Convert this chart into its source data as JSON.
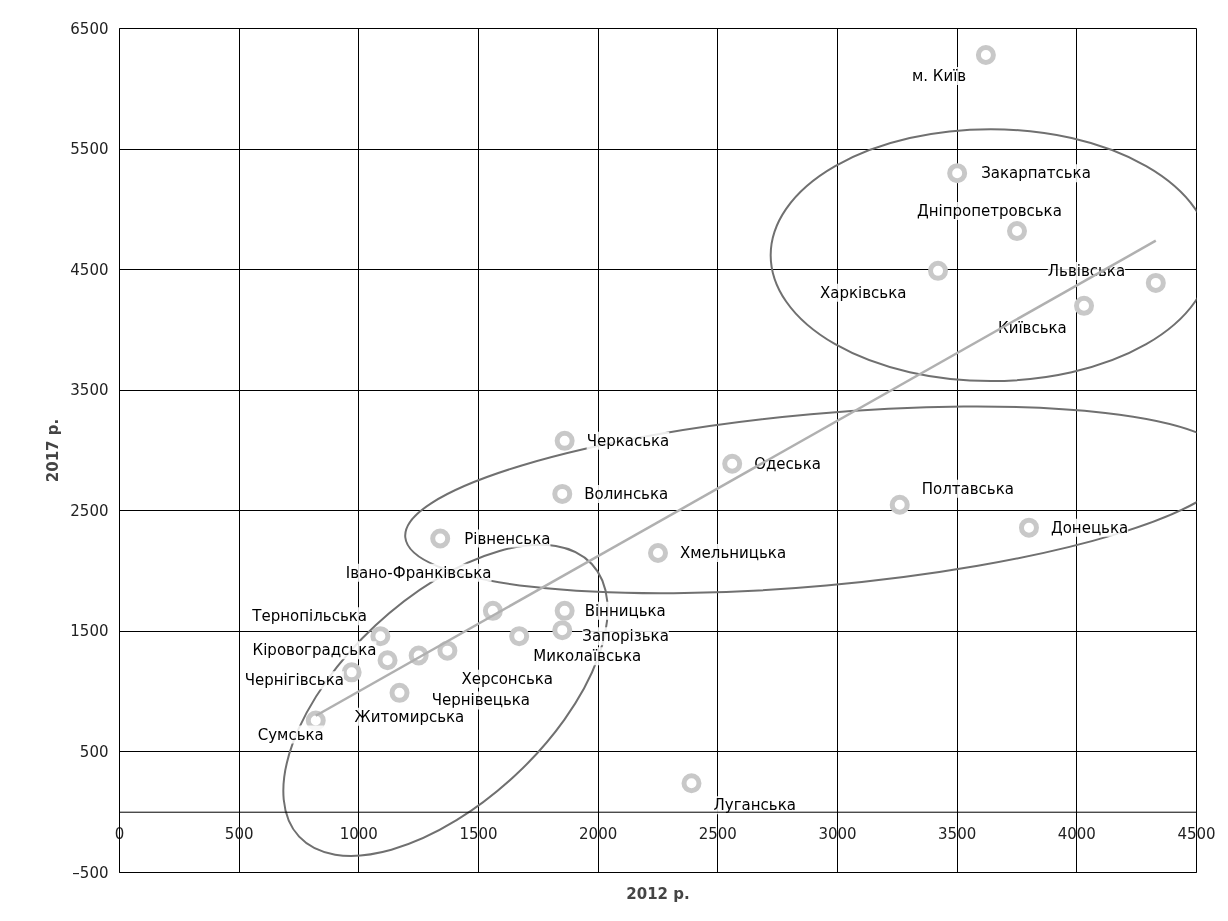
{
  "chart_data": {
    "type": "scatter",
    "xlabel": "2012 р.",
    "ylabel": "2017 р.",
    "xlim": [
      0,
      4500
    ],
    "xticks": [
      0,
      500,
      1000,
      1500,
      2000,
      2500,
      3000,
      3500,
      4000,
      4500
    ],
    "ylim": [
      -500,
      6500
    ],
    "yticks": [
      {
        "value": -500,
        "label": "–500"
      },
      500,
      1500,
      2500,
      3500,
      4500,
      5500,
      6500
    ],
    "grid": true,
    "marker": "circle",
    "series": [
      {
        "color": "#c8c8c8",
        "x": [
          3620,
          3500,
          3750,
          3420,
          4330,
          4030,
          1860,
          2560,
          3260,
          3800,
          1340,
          1850,
          2250,
          1560,
          1860,
          1850,
          1670,
          1090,
          1370,
          1250,
          1120,
          970,
          1170,
          820,
          2390
        ],
        "values": [
          6280,
          5300,
          4820,
          4490,
          4390,
          4200,
          3080,
          2890,
          2550,
          2360,
          2270,
          2640,
          2150,
          1670,
          1670,
          1510,
          1460,
          1460,
          1340,
          1300,
          1260,
          1160,
          990,
          760,
          240
        ],
        "value_labels": [
          "м. Київ",
          "Закарпатська",
          "Дніпропетровська",
          "Харківська",
          "Львівська",
          "Київська",
          "Черкаська",
          "Одеська",
          "Полтавська",
          "Донецька",
          "Рівненська",
          "Волинська",
          "Хмельницька",
          "Івано-Франківська",
          "Вінницька",
          "Запорізька",
          "Миколаївська",
          "Тернопільська",
          "Херсонська",
          "Чернівецька",
          "Кіровоградська",
          "Чернігівська",
          "Житомирська",
          "Сумська",
          "Луганська"
        ]
      },
      {
        "type": "line",
        "marker": "none",
        "color": "#b0b0b0",
        "x": [
          820,
          4330
        ],
        "values": [
          800,
          4740
        ]
      }
    ]
  }
}
